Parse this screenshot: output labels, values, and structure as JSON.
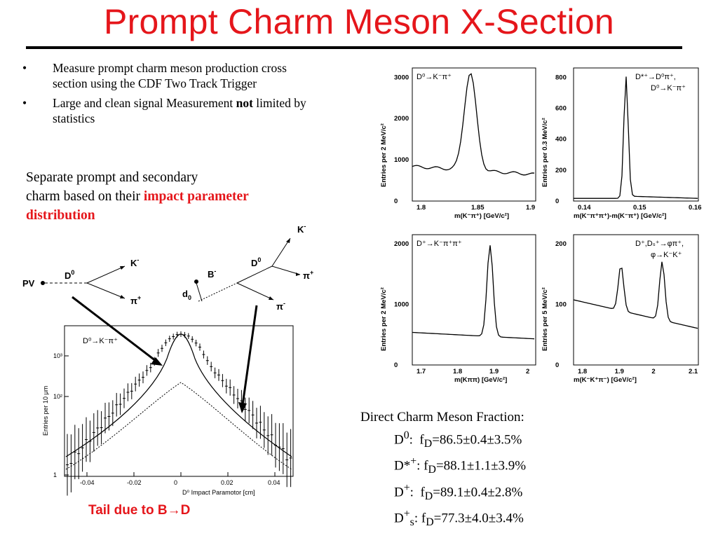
{
  "title": "Prompt Charm Meson X-Section",
  "bullets": [
    {
      "text": "Measure prompt charm meson production cross section using the CDF Two Track Trigger"
    },
    {
      "text_before": "Large and clean signal Measurement ",
      "bold": "not",
      "text_after": " limited by statistics"
    }
  ],
  "separate": {
    "line1": "Separate prompt and secondary",
    "line2": "charm based on their ",
    "highlight1": "impact parameter",
    "highlight2": "distribution"
  },
  "diagram": {
    "pv": "PV",
    "d0": "D",
    "d0_sup": "0",
    "k": "K",
    "k_sup": "-",
    "pi": "π",
    "pi_sup": "+",
    "b": "B",
    "b_sup": "-",
    "d0b": "D",
    "d0b_sup": "0",
    "kb": "K",
    "kb_sup": "-",
    "pib1": "π",
    "pib1_sup": "+",
    "pib2": "π",
    "pib2_sup": "-",
    "d0ip": "d",
    "d0ip_sub": "0"
  },
  "ip_plot": {
    "label": "D⁰→K⁻π⁺",
    "ylabel": "Entries per 10  μm",
    "xlabel": "D⁰ Impact Paramotor [cm]",
    "xticks": [
      "-0.04",
      "-0.02",
      "0",
      "0.02",
      "0.04"
    ],
    "yticks": [
      "1",
      "10²",
      "10³"
    ]
  },
  "mass_plots": [
    {
      "label": "D⁰→K⁻π⁺",
      "ylabel": "Entries per 2 MeV/c²",
      "xlabel": "m(K⁻π⁺)  [GeV/c²]",
      "xticks": [
        "1.8",
        "1.85",
        "1.9"
      ],
      "yticks": [
        "0",
        "1000",
        "2000",
        "3000"
      ]
    },
    {
      "label": "D*⁺→D⁰π⁺,",
      "label2": "D⁰→K⁻π⁺",
      "ylabel": "Entries per 0.3 MeV/c²",
      "xlabel": "m(K⁻π⁺π⁺)-m(K⁻π⁺)  [GeV/c²]",
      "xticks": [
        "0.14",
        "0.15",
        "0.16"
      ],
      "yticks": [
        "0",
        "200",
        "400",
        "600",
        "800"
      ]
    },
    {
      "label": "D⁺→K⁻π⁺π⁺",
      "ylabel": "Entries per 2 MeV/c²",
      "xlabel": "m(Kππ)  [GeV/c²]",
      "xticks": [
        "1.7",
        "1.8",
        "1.9",
        "2"
      ],
      "yticks": [
        "0",
        "1000",
        "2000"
      ]
    },
    {
      "label": "D⁺,Dₛ⁺→φπ⁺,",
      "label2": "φ→K⁻K⁺",
      "ylabel": "Entries per 5 MeV/c²",
      "xlabel": "m(K⁻K⁺π⁻)  [GeV/c²]",
      "xticks": [
        "1.8",
        "1.9",
        "2",
        "2.1"
      ],
      "yticks": [
        "0",
        "100",
        "200"
      ]
    }
  ],
  "fractions": {
    "heading": "Direct Charm Meson Fraction:",
    "rows": [
      "D⁰:  f_D=86.5±0.4±3.5%",
      "D*⁺: f_D=88.1±1.1±3.9%",
      "D⁺:  f_D=89.1±0.4±2.8%",
      "D⁺ₛ: f_D=77.3±4.0±3.4%"
    ]
  },
  "tail": "Tail due to B→D",
  "colors": {
    "accent_red": "#e5161b"
  }
}
